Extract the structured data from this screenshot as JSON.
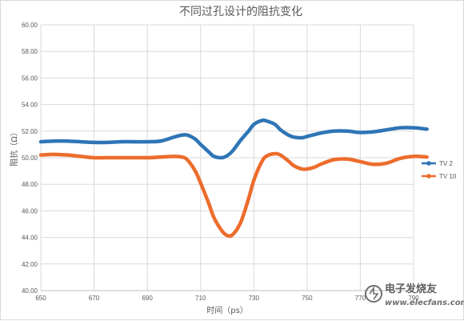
{
  "chart_data": {
    "type": "line",
    "title": "不同过孔设计的阻抗变化",
    "xlabel": "时间（ps）",
    "ylabel": "阻抗（Ω）",
    "xlim": [
      650,
      790
    ],
    "ylim": [
      40,
      60
    ],
    "x_ticks": [
      "650",
      "670",
      "690",
      "710",
      "730",
      "750",
      "770",
      "790"
    ],
    "y_ticks": [
      "40.00",
      "42.00",
      "44.00",
      "46.00",
      "48.00",
      "50.00",
      "52.00",
      "54.00",
      "56.00",
      "58.00",
      "60.00"
    ],
    "grid": true,
    "legend_position": "right",
    "x": [
      650,
      655,
      660,
      665,
      670,
      675,
      680,
      685,
      690,
      695,
      700,
      703,
      705,
      708,
      710,
      713,
      715,
      718,
      720,
      722,
      725,
      728,
      730,
      733,
      735,
      738,
      740,
      743,
      745,
      748,
      750,
      753,
      755,
      760,
      765,
      770,
      775,
      780,
      785,
      790,
      795
    ],
    "series": [
      {
        "name": "TV 2",
        "color": "#2E75B6",
        "values": [
          51.2,
          51.25,
          51.25,
          51.2,
          51.15,
          51.15,
          51.2,
          51.2,
          51.2,
          51.25,
          51.55,
          51.7,
          51.7,
          51.4,
          51.0,
          50.45,
          50.1,
          50.0,
          50.15,
          50.5,
          51.3,
          52.0,
          52.5,
          52.8,
          52.75,
          52.5,
          52.1,
          51.7,
          51.55,
          51.5,
          51.6,
          51.75,
          51.85,
          52.0,
          52.0,
          51.9,
          51.95,
          52.1,
          52.25,
          52.25,
          52.15
        ]
      },
      {
        "name": "TV 10",
        "color": "#ED6C2C",
        "values": [
          50.2,
          50.25,
          50.2,
          50.1,
          50.0,
          50.0,
          50.0,
          50.0,
          50.0,
          50.05,
          50.1,
          50.05,
          49.85,
          49.0,
          48.1,
          46.6,
          45.5,
          44.5,
          44.15,
          44.2,
          45.1,
          46.9,
          48.3,
          49.7,
          50.15,
          50.3,
          50.2,
          49.75,
          49.4,
          49.15,
          49.15,
          49.3,
          49.5,
          49.85,
          49.9,
          49.7,
          49.5,
          49.6,
          49.95,
          50.1,
          50.05
        ]
      }
    ]
  },
  "watermark": {
    "brand": "电子发烧友",
    "url": "www.elecfans.com"
  }
}
